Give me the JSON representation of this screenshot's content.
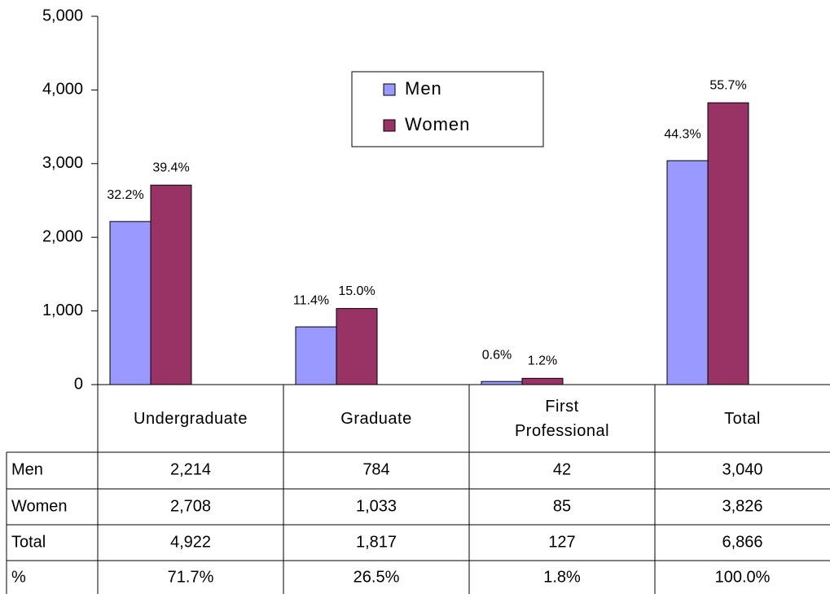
{
  "chart_data": {
    "type": "bar",
    "categories": [
      "Undergraduate",
      "Graduate",
      "First Professional",
      "Total"
    ],
    "series": [
      {
        "name": "Men",
        "color": "#9999ff",
        "values": [
          2214,
          784,
          42,
          3040
        ],
        "value_labels": [
          "2,214",
          "784",
          "42",
          "3,040"
        ],
        "shares": [
          "32.2%",
          "11.4%",
          "0.6%",
          "44.3%"
        ]
      },
      {
        "name": "Women",
        "color": "#993366",
        "values": [
          2708,
          1033,
          85,
          3826
        ],
        "value_labels": [
          "2,708",
          "1,033",
          "85",
          "3,826"
        ],
        "shares": [
          "39.4%",
          "15.0%",
          "1.2%",
          "55.7%"
        ]
      }
    ],
    "ylim": [
      0,
      5000
    ],
    "yticks": [
      0,
      {
        "value": 1000,
        "label": "1,000"
      },
      {
        "value": 2000,
        "label": "2,000"
      },
      {
        "value": 3000,
        "label": "3,000"
      },
      {
        "value": 4000,
        "label": "4,000"
      },
      {
        "value": 5000,
        "label": "5,000"
      }
    ],
    "grid": false,
    "legend": "top-center",
    "table": {
      "rows": [
        {
          "label": "Total",
          "cells": [
            "4,922",
            "1,817",
            "127",
            "6,866"
          ]
        },
        {
          "label": "%",
          "cells": [
            "71.7%",
            "26.5%",
            "1.8%",
            "100.0%"
          ]
        }
      ]
    }
  }
}
